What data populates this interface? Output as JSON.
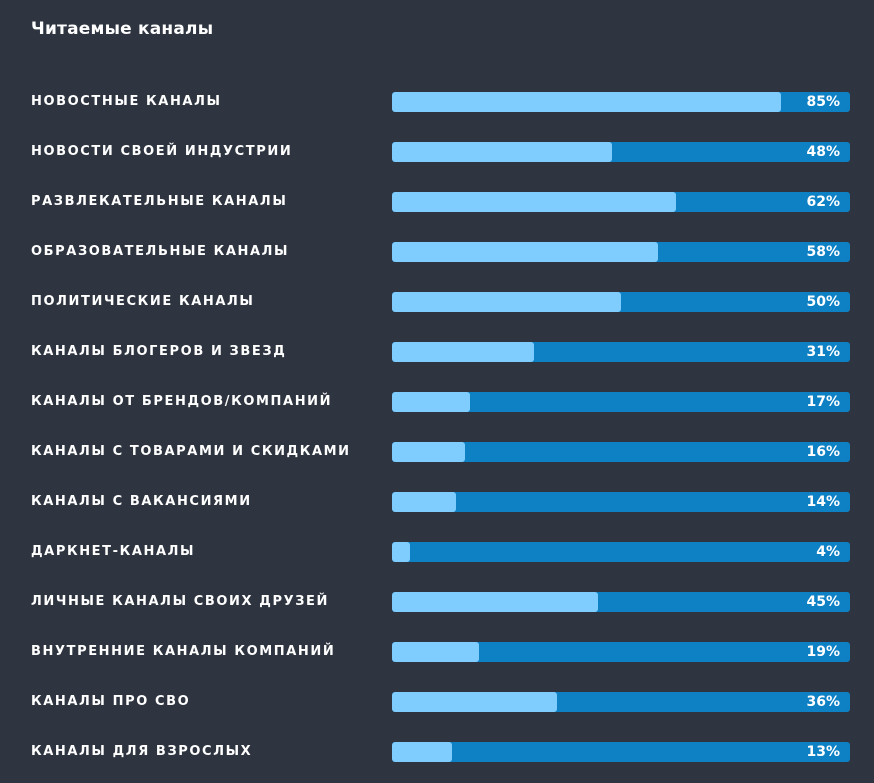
{
  "title": "Читаемые каналы",
  "colors": {
    "background": "#2e3541",
    "bar_track": "#0e80c4",
    "bar_fill": "#7fcdff",
    "text": "#ffffff"
  },
  "chart_data": {
    "type": "bar",
    "orientation": "horizontal",
    "title": "Читаемые каналы",
    "xlabel": "",
    "ylabel": "",
    "xlim": [
      0,
      100
    ],
    "unit": "%",
    "grid": false,
    "categories": [
      "НОВОСТНЫЕ КАНАЛЫ",
      "НОВОСТИ СВОЕЙ ИНДУСТРИИ",
      "РАЗВЛЕКАТЕЛЬНЫЕ КАНАЛЫ",
      "ОБРАЗОВАТЕЛЬНЫЕ КАНАЛЫ",
      "ПОЛИТИЧЕСКИЕ КАНАЛЫ",
      "КАНАЛЫ БЛОГЕРОВ И ЗВЕЗД",
      "КАНАЛЫ ОТ БРЕНДОВ/КОМПАНИЙ",
      "КАНАЛЫ С ТОВАРАМИ И СКИДКАМИ",
      "КАНАЛЫ С ВАКАНСИЯМИ",
      "ДАРКНЕТ-КАНАЛЫ",
      "ЛИЧНЫЕ КАНАЛЫ СВОИХ ДРУЗЕЙ",
      "ВНУТРЕННИЕ КАНАЛЫ КОМПАНИЙ",
      "КАНАЛЫ ПРО СВО",
      "КАНАЛЫ ДЛЯ ВЗРОСЛЫХ"
    ],
    "values": [
      85,
      48,
      62,
      58,
      50,
      31,
      17,
      16,
      14,
      4,
      45,
      19,
      36,
      13
    ],
    "value_labels": [
      "85%",
      "48%",
      "62%",
      "58%",
      "50%",
      "31%",
      "17%",
      "16%",
      "14%",
      "4%",
      "45%",
      "19%",
      "36%",
      "13%"
    ]
  }
}
